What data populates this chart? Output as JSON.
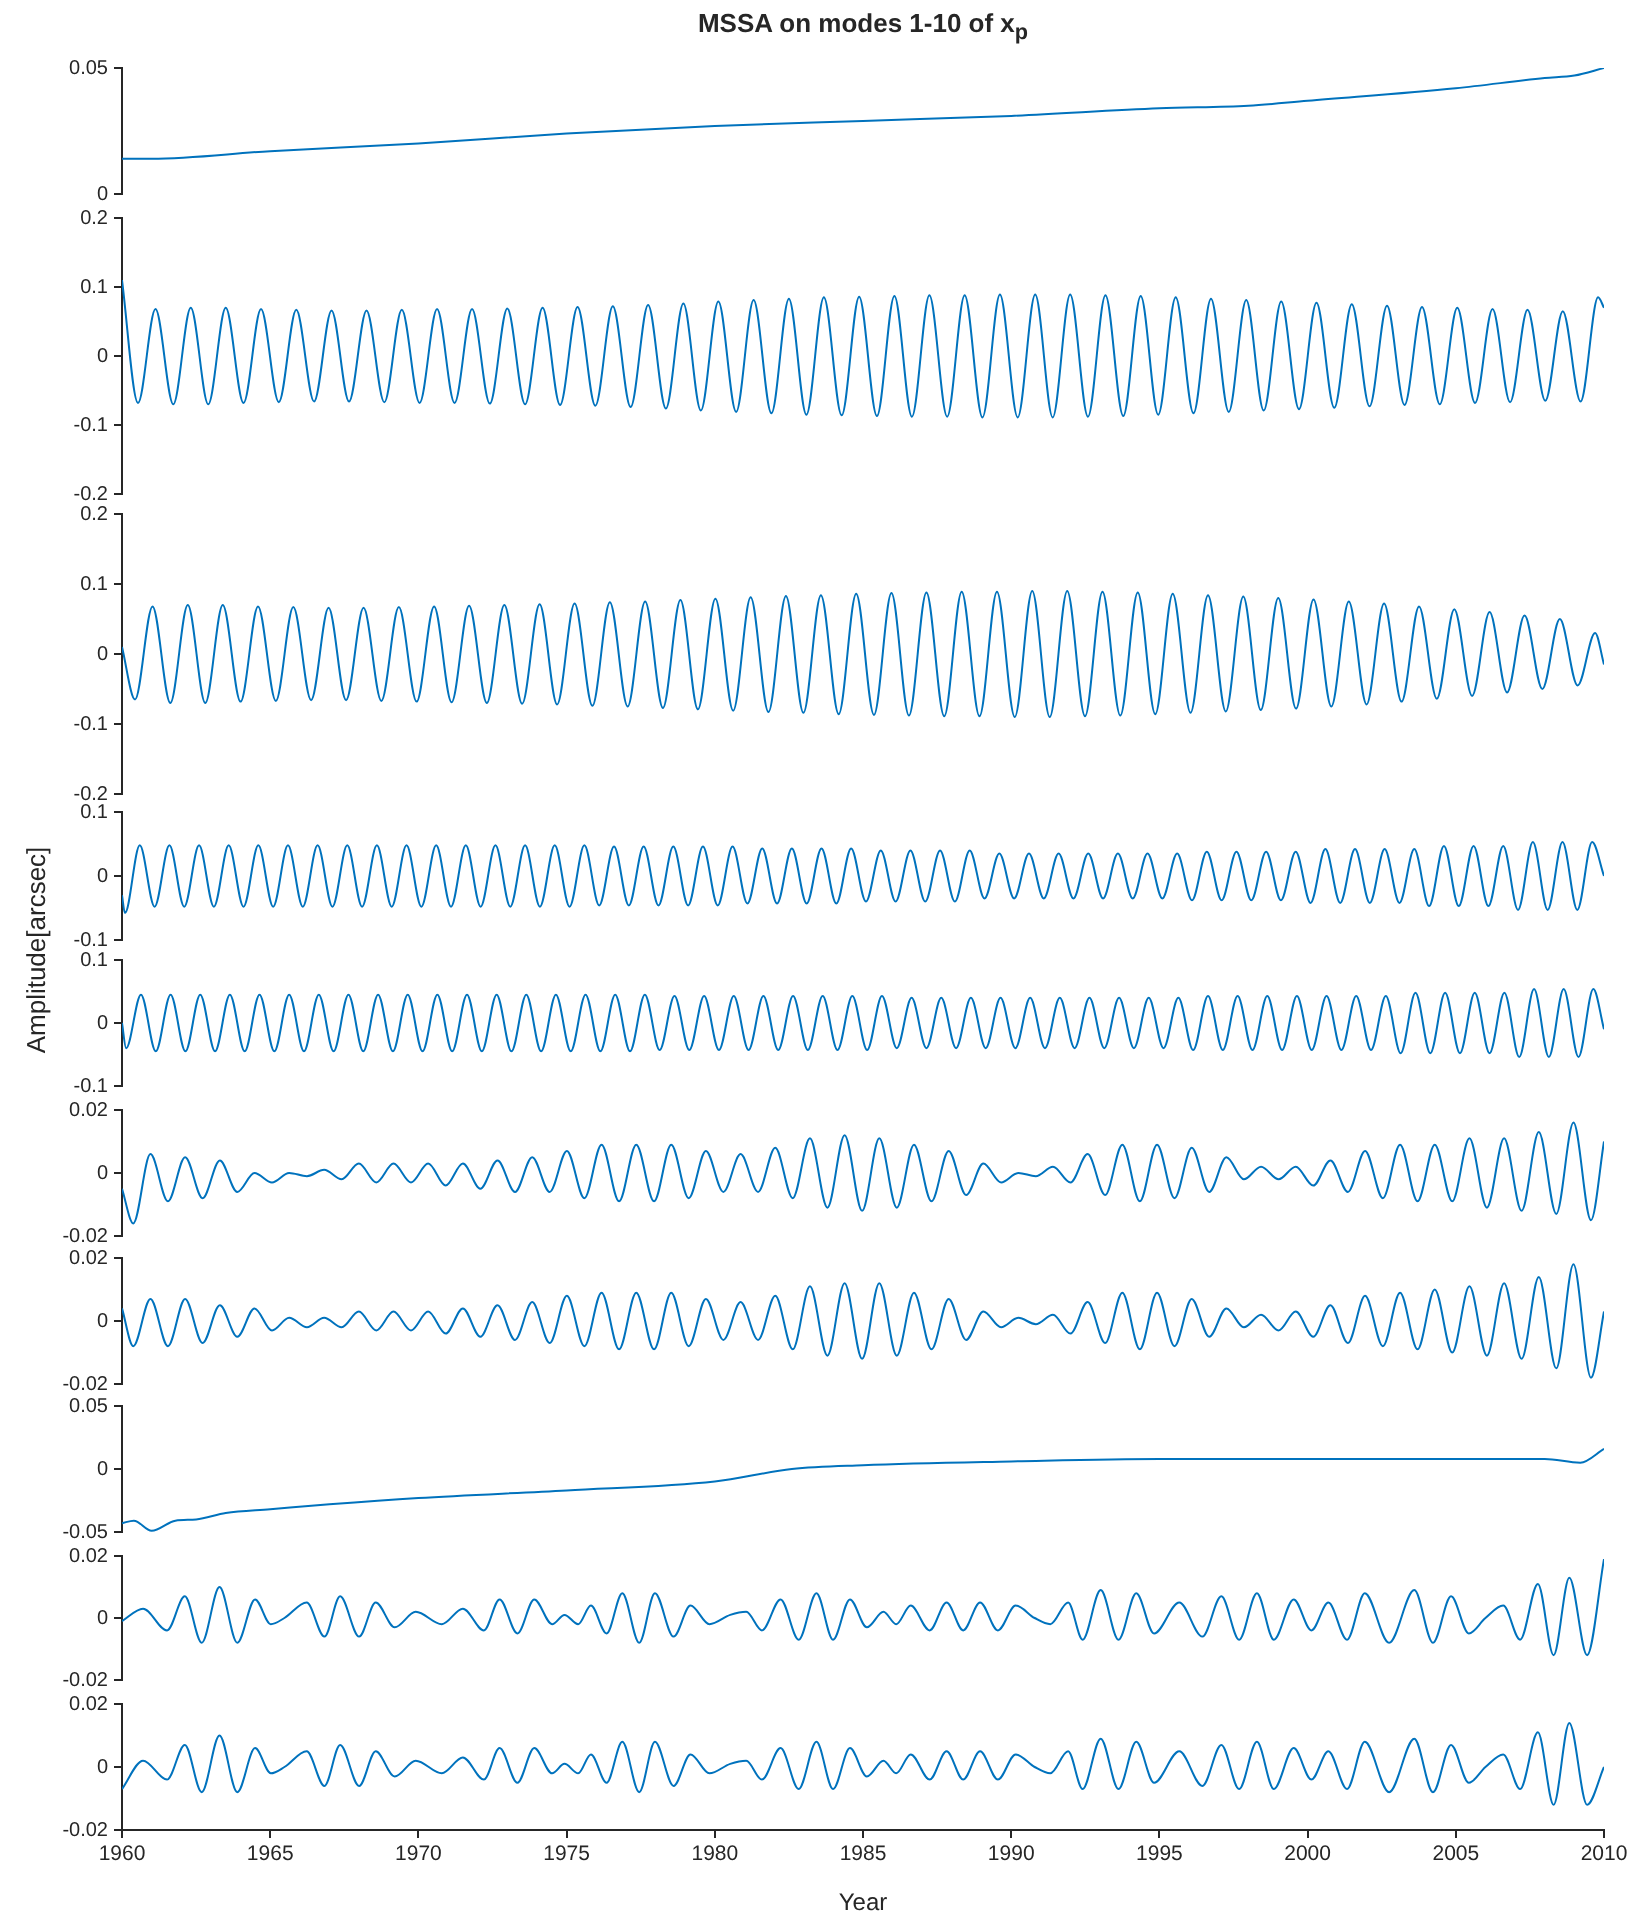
{
  "chart_data": [
    {
      "type": "line",
      "title": "MSSA on modes 1-10 of x$_{p}$",
      "color": "#0072bd",
      "tick_labels": "y",
      "xlim": [
        1960,
        2010
      ],
      "ylim": [
        0,
        0.05
      ],
      "yticks": [
        0,
        0.05
      ],
      "x": [
        1960,
        1961,
        1965,
        1970,
        1975,
        1980,
        1985,
        1990,
        1995,
        1998,
        2000,
        2005,
        2008,
        2009,
        2010
      ],
      "values": [
        0.014,
        0.014,
        0.017,
        0.02,
        0.024,
        0.027,
        0.029,
        0.031,
        0.034,
        0.035,
        0.037,
        0.042,
        0.046,
        0.047,
        0.05
      ]
    },
    {
      "type": "line",
      "color": "#0072bd",
      "tick_labels": "y",
      "xlim": [
        1960,
        2010
      ],
      "ylim": [
        -0.2,
        0.2
      ],
      "yticks": [
        -0.2,
        -0.1,
        0,
        0.1,
        0.2
      ],
      "x": [
        1960,
        1960.54,
        1961.13,
        1961.73,
        1962.32,
        1962.91,
        1963.5,
        1964.1,
        1964.69,
        1965.29,
        1965.88,
        1966.48,
        1967.07,
        1967.66,
        1968.25,
        1968.85,
        1969.44,
        1970.04,
        1970.63,
        1971.22,
        1971.81,
        1972.41,
        1973.0,
        1973.6,
        1974.19,
        1974.78,
        1975.37,
        1975.97,
        1976.56,
        1977.16,
        1977.75,
        1978.35,
        1978.94,
        1979.53,
        1980.12,
        1980.72,
        1981.31,
        1981.91,
        1982.5,
        1983.09,
        1983.68,
        1984.28,
        1984.87,
        1985.47,
        1986.06,
        1986.65,
        1987.24,
        1987.84,
        1988.43,
        1989.03,
        1989.62,
        1990.22,
        1990.81,
        1991.4,
        1991.99,
        1992.59,
        1993.18,
        1993.78,
        1994.37,
        1994.96,
        1995.55,
        1996.15,
        1996.74,
        1997.34,
        1997.93,
        1998.52,
        1999.11,
        1999.71,
        2000.3,
        2000.9,
        2001.49,
        2002.09,
        2002.68,
        2003.27,
        2003.86,
        2004.46,
        2005.05,
        2005.65,
        2006.24,
        2006.83,
        2007.42,
        2008.02,
        2008.61,
        2009.21,
        2009.8,
        2010
      ],
      "values": [
        0.11,
        -0.068,
        0.068,
        -0.07,
        0.07,
        -0.07,
        0.07,
        -0.068,
        0.068,
        -0.067,
        0.067,
        -0.066,
        0.066,
        -0.066,
        0.066,
        -0.067,
        0.067,
        -0.068,
        0.068,
        -0.068,
        0.068,
        -0.069,
        0.069,
        -0.07,
        0.07,
        -0.071,
        0.071,
        -0.072,
        0.072,
        -0.074,
        0.074,
        -0.076,
        0.076,
        -0.079,
        0.079,
        -0.081,
        0.081,
        -0.083,
        0.083,
        -0.085,
        0.085,
        -0.086,
        0.086,
        -0.087,
        0.087,
        -0.088,
        0.088,
        -0.088,
        0.088,
        -0.089,
        0.089,
        -0.089,
        0.089,
        -0.089,
        0.089,
        -0.088,
        0.088,
        -0.087,
        0.087,
        -0.085,
        0.085,
        -0.083,
        0.083,
        -0.081,
        0.081,
        -0.079,
        0.079,
        -0.077,
        0.077,
        -0.075,
        0.075,
        -0.073,
        0.073,
        -0.071,
        0.071,
        -0.07,
        0.07,
        -0.068,
        0.068,
        -0.067,
        0.067,
        -0.065,
        0.065,
        -0.066,
        0.085,
        0.07
      ]
    },
    {
      "type": "line",
      "color": "#0072bd",
      "tick_labels": "y",
      "xlim": [
        1960,
        2010
      ],
      "ylim": [
        -0.2,
        0.2
      ],
      "yticks": [
        -0.2,
        -0.1,
        0,
        0.1,
        0.2
      ],
      "x": [
        1960,
        1960.44,
        1961.03,
        1961.63,
        1962.22,
        1962.81,
        1963.4,
        1964.0,
        1964.59,
        1965.19,
        1965.78,
        1966.38,
        1966.97,
        1967.56,
        1968.15,
        1968.75,
        1969.34,
        1969.94,
        1970.53,
        1971.12,
        1971.71,
        1972.31,
        1972.9,
        1973.5,
        1974.09,
        1974.68,
        1975.27,
        1975.87,
        1976.46,
        1977.06,
        1977.65,
        1978.25,
        1978.84,
        1979.43,
        1980.02,
        1980.62,
        1981.21,
        1981.81,
        1982.4,
        1982.99,
        1983.58,
        1984.18,
        1984.77,
        1985.37,
        1985.96,
        1986.55,
        1987.14,
        1987.74,
        1988.33,
        1988.93,
        1989.52,
        1990.12,
        1990.71,
        1991.3,
        1991.89,
        1992.49,
        1993.08,
        1993.68,
        1994.27,
        1994.86,
        1995.45,
        1996.05,
        1996.64,
        1997.24,
        1997.83,
        1998.42,
        1999.01,
        1999.61,
        2000.2,
        2000.8,
        2001.39,
        2001.99,
        2002.58,
        2003.17,
        2003.76,
        2004.36,
        2004.95,
        2005.55,
        2006.14,
        2006.73,
        2007.32,
        2007.92,
        2008.51,
        2009.11,
        2009.7,
        2010
      ],
      "values": [
        0.01,
        -0.065,
        0.068,
        -0.07,
        0.07,
        -0.07,
        0.07,
        -0.068,
        0.068,
        -0.067,
        0.067,
        -0.066,
        0.066,
        -0.066,
        0.066,
        -0.067,
        0.067,
        -0.068,
        0.068,
        -0.069,
        0.069,
        -0.07,
        0.07,
        -0.071,
        0.071,
        -0.072,
        0.072,
        -0.074,
        0.074,
        -0.075,
        0.075,
        -0.077,
        0.077,
        -0.079,
        0.079,
        -0.081,
        0.081,
        -0.083,
        0.083,
        -0.084,
        0.084,
        -0.086,
        0.086,
        -0.087,
        0.087,
        -0.088,
        0.088,
        -0.089,
        0.089,
        -0.089,
        0.089,
        -0.09,
        0.09,
        -0.09,
        0.09,
        -0.089,
        0.089,
        -0.088,
        0.088,
        -0.086,
        0.086,
        -0.084,
        0.084,
        -0.082,
        0.082,
        -0.08,
        0.08,
        -0.078,
        0.078,
        -0.075,
        0.075,
        -0.072,
        0.072,
        -0.068,
        0.068,
        -0.064,
        0.064,
        -0.06,
        0.06,
        -0.055,
        0.055,
        -0.05,
        0.05,
        -0.045,
        0.03,
        -0.015
      ]
    },
    {
      "type": "line",
      "ylabel": "Amplitude[arcsec]",
      "color": "#0072bd",
      "tick_labels": "y",
      "xlim": [
        1960,
        2010
      ],
      "ylim": [
        -0.1,
        0.1
      ],
      "yticks": [
        -0.1,
        0,
        0.1
      ],
      "x": [
        1960,
        1960.1,
        1960.6,
        1961.1,
        1961.6,
        1962.1,
        1962.6,
        1963.1,
        1963.6,
        1964.1,
        1964.6,
        1965.1,
        1965.6,
        1966.1,
        1966.6,
        1967.1,
        1967.6,
        1968.1,
        1968.6,
        1969.1,
        1969.6,
        1970.1,
        1970.6,
        1971.1,
        1971.6,
        1972.1,
        1972.6,
        1973.1,
        1973.6,
        1974.1,
        1974.6,
        1975.1,
        1975.6,
        1976.1,
        1976.6,
        1977.1,
        1977.6,
        1978.1,
        1978.6,
        1979.1,
        1979.6,
        1980.1,
        1980.6,
        1981.1,
        1981.6,
        1982.1,
        1982.6,
        1983.1,
        1983.6,
        1984.1,
        1984.6,
        1985.1,
        1985.6,
        1986.1,
        1986.6,
        1987.1,
        1987.6,
        1988.1,
        1988.6,
        1989.1,
        1989.6,
        1990.1,
        1990.6,
        1991.1,
        1991.6,
        1992.1,
        1992.6,
        1993.1,
        1993.6,
        1994.1,
        1994.6,
        1995.1,
        1995.6,
        1996.1,
        1996.6,
        1997.1,
        1997.6,
        1998.1,
        1998.6,
        1999.1,
        1999.6,
        2000.1,
        2000.6,
        2001.1,
        2001.6,
        2002.1,
        2002.6,
        2003.1,
        2003.6,
        2004.1,
        2004.6,
        2005.1,
        2005.6,
        2006.1,
        2006.6,
        2007.1,
        2007.6,
        2008.1,
        2008.6,
        2009.1,
        2009.6,
        2010
      ],
      "values": [
        -0.03,
        -0.058,
        0.048,
        -0.048,
        0.048,
        -0.048,
        0.048,
        -0.048,
        0.048,
        -0.048,
        0.048,
        -0.048,
        0.048,
        -0.048,
        0.048,
        -0.048,
        0.048,
        -0.048,
        0.048,
        -0.048,
        0.048,
        -0.048,
        0.048,
        -0.048,
        0.048,
        -0.048,
        0.048,
        -0.048,
        0.048,
        -0.048,
        0.048,
        -0.048,
        0.048,
        -0.046,
        0.046,
        -0.046,
        0.046,
        -0.046,
        0.046,
        -0.046,
        0.046,
        -0.046,
        0.046,
        -0.043,
        0.043,
        -0.043,
        0.043,
        -0.043,
        0.043,
        -0.043,
        0.043,
        -0.04,
        0.04,
        -0.04,
        0.04,
        -0.04,
        0.04,
        -0.04,
        0.04,
        -0.035,
        0.035,
        -0.035,
        0.035,
        -0.035,
        0.035,
        -0.035,
        0.035,
        -0.035,
        0.035,
        -0.035,
        0.035,
        -0.035,
        0.035,
        -0.038,
        0.038,
        -0.038,
        0.038,
        -0.038,
        0.038,
        -0.038,
        0.038,
        -0.042,
        0.042,
        -0.042,
        0.042,
        -0.042,
        0.042,
        -0.042,
        0.042,
        -0.047,
        0.047,
        -0.047,
        0.047,
        -0.047,
        0.047,
        -0.053,
        0.053,
        -0.053,
        0.053,
        -0.053,
        0.053,
        0
      ]
    },
    {
      "type": "line",
      "color": "#0072bd",
      "tick_labels": "y",
      "xlim": [
        1960,
        2010
      ],
      "ylim": [
        -0.1,
        0.1
      ],
      "yticks": [
        -0.1,
        0,
        0.1
      ],
      "x": [
        1960,
        1960.14,
        1960.64,
        1961.14,
        1961.64,
        1962.14,
        1962.64,
        1963.14,
        1963.64,
        1964.14,
        1964.64,
        1965.14,
        1965.64,
        1966.14,
        1966.64,
        1967.14,
        1967.64,
        1968.14,
        1968.64,
        1969.14,
        1969.64,
        1970.14,
        1970.64,
        1971.14,
        1971.64,
        1972.14,
        1972.64,
        1973.14,
        1973.64,
        1974.14,
        1974.64,
        1975.14,
        1975.64,
        1976.14,
        1976.64,
        1977.14,
        1977.64,
        1978.14,
        1978.64,
        1979.14,
        1979.64,
        1980.14,
        1980.64,
        1981.14,
        1981.64,
        1982.14,
        1982.64,
        1983.14,
        1983.64,
        1984.14,
        1984.64,
        1985.14,
        1985.64,
        1986.14,
        1986.64,
        1987.14,
        1987.64,
        1988.14,
        1988.64,
        1989.14,
        1989.64,
        1990.14,
        1990.64,
        1991.14,
        1991.64,
        1992.14,
        1992.64,
        1993.14,
        1993.64,
        1994.14,
        1994.64,
        1995.14,
        1995.64,
        1996.14,
        1996.64,
        1997.14,
        1997.64,
        1998.14,
        1998.64,
        1999.14,
        1999.64,
        2000.14,
        2000.64,
        2001.14,
        2001.64,
        2002.14,
        2002.64,
        2003.14,
        2003.64,
        2004.14,
        2004.64,
        2005.14,
        2005.64,
        2006.14,
        2006.64,
        2007.14,
        2007.64,
        2008.14,
        2008.64,
        2009.14,
        2009.64,
        2010
      ],
      "values": [
        0,
        -0.04,
        0.045,
        -0.045,
        0.045,
        -0.045,
        0.045,
        -0.045,
        0.045,
        -0.045,
        0.045,
        -0.045,
        0.045,
        -0.045,
        0.045,
        -0.045,
        0.045,
        -0.045,
        0.045,
        -0.045,
        0.045,
        -0.045,
        0.045,
        -0.045,
        0.045,
        -0.045,
        0.045,
        -0.045,
        0.045,
        -0.045,
        0.045,
        -0.045,
        0.045,
        -0.045,
        0.045,
        -0.045,
        0.045,
        -0.043,
        0.043,
        -0.043,
        0.043,
        -0.043,
        0.043,
        -0.043,
        0.043,
        -0.043,
        0.043,
        -0.043,
        0.043,
        -0.043,
        0.043,
        -0.043,
        0.043,
        -0.04,
        0.04,
        -0.04,
        0.04,
        -0.04,
        0.04,
        -0.04,
        0.04,
        -0.04,
        0.04,
        -0.04,
        0.04,
        -0.04,
        0.04,
        -0.04,
        0.04,
        -0.04,
        0.04,
        -0.04,
        0.04,
        -0.043,
        0.043,
        -0.043,
        0.043,
        -0.043,
        0.043,
        -0.043,
        0.043,
        -0.043,
        0.043,
        -0.043,
        0.043,
        -0.043,
        0.043,
        -0.048,
        0.048,
        -0.048,
        0.048,
        -0.048,
        0.048,
        -0.048,
        0.048,
        -0.054,
        0.054,
        -0.054,
        0.054,
        -0.054,
        0.054,
        -0.01
      ]
    },
    {
      "type": "line",
      "color": "#0072bd",
      "tick_labels": "y",
      "xlim": [
        1960,
        2010
      ],
      "ylim": [
        -0.02,
        0.02
      ],
      "yticks": [
        -0.02,
        0,
        0.02
      ],
      "x": [
        1960,
        1960.38,
        1960.96,
        1961.55,
        1962.13,
        1962.72,
        1963.3,
        1963.89,
        1964.47,
        1965.06,
        1965.64,
        1966.24,
        1966.82,
        1967.41,
        1967.99,
        1968.58,
        1969.16,
        1969.75,
        1970.33,
        1970.92,
        1971.5,
        1972.09,
        1972.67,
        1973.26,
        1973.84,
        1974.43,
        1975.01,
        1975.6,
        1976.18,
        1976.77,
        1977.35,
        1977.95,
        1978.53,
        1979.12,
        1979.7,
        1980.29,
        1980.87,
        1981.46,
        1982.04,
        1982.63,
        1983.21,
        1983.8,
        1984.38,
        1984.97,
        1985.55,
        1986.14,
        1986.72,
        1987.31,
        1987.89,
        1988.48,
        1989.06,
        1989.66,
        1990.24,
        1990.83,
        1991.41,
        1992.0,
        1992.58,
        1993.17,
        1993.75,
        1994.34,
        1994.92,
        1995.51,
        1996.09,
        1996.68,
        1997.26,
        1997.85,
        1998.43,
        1999.02,
        1999.6,
        2000.19,
        2000.77,
        2001.36,
        2001.94,
        2002.54,
        2003.12,
        2003.71,
        2004.29,
        2004.88,
        2005.46,
        2006.05,
        2006.63,
        2007.22,
        2007.8,
        2008.39,
        2008.97,
        2009.56,
        2010
      ],
      "values": [
        -0.005,
        -0.016,
        0.006,
        -0.009,
        0.005,
        -0.008,
        0.004,
        -0.006,
        0,
        -0.003,
        0,
        -0.001,
        0.001,
        -0.002,
        0.003,
        -0.003,
        0.003,
        -0.003,
        0.003,
        -0.004,
        0.003,
        -0.005,
        0.004,
        -0.006,
        0.005,
        -0.006,
        0.007,
        -0.008,
        0.009,
        -0.009,
        0.009,
        -0.009,
        0.009,
        -0.008,
        0.007,
        -0.006,
        0.006,
        -0.006,
        0.008,
        -0.008,
        0.011,
        -0.011,
        0.012,
        -0.012,
        0.011,
        -0.011,
        0.009,
        -0.009,
        0.007,
        -0.007,
        0.003,
        -0.003,
        0,
        -0.001,
        0.002,
        -0.003,
        0.006,
        -0.007,
        0.009,
        -0.009,
        0.009,
        -0.008,
        0.008,
        -0.006,
        0.005,
        -0.002,
        0.002,
        -0.002,
        0.002,
        -0.004,
        0.004,
        -0.006,
        0.007,
        -0.008,
        0.009,
        -0.009,
        0.009,
        -0.009,
        0.011,
        -0.011,
        0.011,
        -0.012,
        0.013,
        -0.013,
        0.016,
        -0.015,
        0.01
      ]
    },
    {
      "type": "line",
      "color": "#0072bd",
      "tick_labels": "y",
      "xlim": [
        1960,
        2010
      ],
      "ylim": [
        -0.02,
        0.02
      ],
      "yticks": [
        -0.02,
        0,
        0.02
      ],
      "x": [
        1960,
        1960.38,
        1960.96,
        1961.55,
        1962.13,
        1962.72,
        1963.3,
        1963.89,
        1964.47,
        1965.06,
        1965.64,
        1966.24,
        1966.82,
        1967.41,
        1967.99,
        1968.58,
        1969.16,
        1969.75,
        1970.33,
        1970.92,
        1971.5,
        1972.09,
        1972.67,
        1973.26,
        1973.84,
        1974.43,
        1975.01,
        1975.6,
        1976.18,
        1976.77,
        1977.35,
        1977.95,
        1978.53,
        1979.12,
        1979.7,
        1980.29,
        1980.87,
        1981.46,
        1982.04,
        1982.63,
        1983.21,
        1983.8,
        1984.38,
        1984.97,
        1985.55,
        1986.14,
        1986.72,
        1987.31,
        1987.89,
        1988.48,
        1989.06,
        1989.66,
        1990.24,
        1990.83,
        1991.41,
        1992.0,
        1992.58,
        1993.17,
        1993.75,
        1994.34,
        1994.92,
        1995.51,
        1996.09,
        1996.68,
        1997.26,
        1997.85,
        1998.43,
        1999.02,
        1999.6,
        2000.19,
        2000.77,
        2001.36,
        2001.94,
        2002.54,
        2003.12,
        2003.71,
        2004.29,
        2004.88,
        2005.46,
        2006.05,
        2006.63,
        2007.22,
        2007.8,
        2008.39,
        2008.97,
        2009.56,
        2010
      ],
      "values": [
        0.004,
        -0.008,
        0.007,
        -0.008,
        0.007,
        -0.007,
        0.005,
        -0.005,
        0.004,
        -0.003,
        0.001,
        -0.002,
        0.001,
        -0.002,
        0.003,
        -0.003,
        0.003,
        -0.003,
        0.003,
        -0.004,
        0.004,
        -0.005,
        0.005,
        -0.006,
        0.006,
        -0.007,
        0.008,
        -0.008,
        0.009,
        -0.009,
        0.009,
        -0.009,
        0.009,
        -0.008,
        0.007,
        -0.006,
        0.006,
        -0.006,
        0.008,
        -0.009,
        0.011,
        -0.011,
        0.012,
        -0.012,
        0.012,
        -0.011,
        0.009,
        -0.009,
        0.007,
        -0.006,
        0.003,
        -0.002,
        0.001,
        -0.001,
        0.002,
        -0.004,
        0.006,
        -0.007,
        0.009,
        -0.009,
        0.009,
        -0.008,
        0.007,
        -0.005,
        0.004,
        -0.002,
        0.002,
        -0.003,
        0.003,
        -0.005,
        0.005,
        -0.007,
        0.008,
        -0.008,
        0.009,
        -0.009,
        0.01,
        -0.01,
        0.011,
        -0.011,
        0.012,
        -0.012,
        0.014,
        -0.015,
        0.018,
        -0.018,
        0.003
      ]
    },
    {
      "type": "line",
      "color": "#0072bd",
      "tick_labels": "y",
      "xlim": [
        1960,
        2010
      ],
      "ylim": [
        -0.05,
        0.05
      ],
      "yticks": [
        -0.05,
        0,
        0.05
      ],
      "x": [
        1960,
        1960.4,
        1961,
        1961.8,
        1962.5,
        1963.5,
        1965,
        1967,
        1970,
        1975,
        1980,
        1982.6,
        1985,
        1990,
        1995,
        2000,
        2005,
        2008,
        2009.2,
        2010
      ],
      "values": [
        -0.043,
        -0.041,
        -0.049,
        -0.041,
        -0.04,
        -0.035,
        -0.032,
        -0.028,
        -0.023,
        -0.017,
        -0.01,
        0,
        0.003,
        0.006,
        0.008,
        0.008,
        0.008,
        0.008,
        0.005,
        0.016
      ]
    },
    {
      "type": "line",
      "color": "#0072bd",
      "tick_labels": "y",
      "xlim": [
        1960,
        2010
      ],
      "ylim": [
        -0.02,
        0.02
      ],
      "yticks": [
        -0.02,
        0,
        0.02
      ],
      "x": [
        1960,
        1960.71,
        1961.52,
        1962.12,
        1962.69,
        1963.29,
        1963.89,
        1964.49,
        1965.02,
        1965.48,
        1966.23,
        1966.83,
        1967.36,
        1968.0,
        1968.56,
        1969.2,
        1969.91,
        1970.79,
        1971.5,
        1972.21,
        1972.74,
        1973.34,
        1973.91,
        1974.51,
        1974.93,
        1975.39,
        1975.82,
        1976.35,
        1976.88,
        1977.45,
        1977.98,
        1978.61,
        1979.18,
        1979.82,
        1980.52,
        1981.06,
        1981.59,
        1982.22,
        1982.83,
        1983.43,
        1983.99,
        1984.56,
        1985.13,
        1985.69,
        1986.12,
        1986.61,
        1987.25,
        1987.82,
        1988.38,
        1988.95,
        1989.55,
        1990.15,
        1990.79,
        1991.32,
        1991.92,
        1992.41,
        1993.02,
        1993.62,
        1994.22,
        1994.82,
        1995.67,
        1996.45,
        1997.09,
        1997.69,
        1998.29,
        1998.86,
        1999.53,
        2000.13,
        2000.7,
        2001.33,
        2001.93,
        2002.75,
        2003.6,
        2004.23,
        2004.84,
        2005.44,
        2006.0,
        2006.6,
        2007.17,
        2007.77,
        2008.3,
        2008.83,
        2009.43,
        2010
      ],
      "values": [
        -0.001,
        0.003,
        -0.004,
        0.007,
        -0.008,
        0.01,
        -0.008,
        0.006,
        -0.002,
        0,
        0.005,
        -0.006,
        0.007,
        -0.006,
        0.005,
        -0.003,
        0.002,
        -0.002,
        0.003,
        -0.004,
        0.006,
        -0.005,
        0.006,
        -0.002,
        0.001,
        -0.002,
        0.004,
        -0.005,
        0.008,
        -0.008,
        0.008,
        -0.006,
        0.004,
        -0.002,
        0.001,
        0.002,
        -0.004,
        0.006,
        -0.007,
        0.008,
        -0.007,
        0.006,
        -0.003,
        0.002,
        -0.002,
        0.004,
        -0.004,
        0.005,
        -0.004,
        0.005,
        -0.004,
        0.004,
        0,
        -0.002,
        0.005,
        -0.007,
        0.009,
        -0.007,
        0.008,
        -0.005,
        0.005,
        -0.006,
        0.007,
        -0.007,
        0.008,
        -0.007,
        0.006,
        -0.004,
        0.005,
        -0.007,
        0.008,
        -0.008,
        0.009,
        -0.008,
        0.007,
        -0.005,
        0,
        0.004,
        -0.007,
        0.011,
        -0.012,
        0.013,
        -0.012,
        0.019
      ]
    },
    {
      "type": "line",
      "xlabel": "Year",
      "color": "#0072bd",
      "xlim": [
        1960,
        2010
      ],
      "xticks": [
        1960,
        1965,
        1970,
        1975,
        1980,
        1985,
        1990,
        1995,
        2000,
        2005,
        2010
      ],
      "ylim": [
        -0.02,
        0.02
      ],
      "yticks": [
        -0.02,
        0,
        0.02
      ],
      "x": [
        1960,
        1960.71,
        1961.52,
        1962.12,
        1962.69,
        1963.29,
        1963.89,
        1964.49,
        1965.02,
        1965.48,
        1966.23,
        1966.83,
        1967.36,
        1968.0,
        1968.56,
        1969.2,
        1969.91,
        1970.79,
        1971.5,
        1972.21,
        1972.74,
        1973.34,
        1973.91,
        1974.51,
        1974.93,
        1975.39,
        1975.82,
        1976.35,
        1976.88,
        1977.45,
        1977.98,
        1978.61,
        1979.18,
        1979.82,
        1980.52,
        1981.06,
        1981.59,
        1982.22,
        1982.83,
        1983.43,
        1983.99,
        1984.56,
        1985.13,
        1985.69,
        1986.12,
        1986.61,
        1987.25,
        1987.82,
        1988.38,
        1988.95,
        1989.55,
        1990.15,
        1990.79,
        1991.32,
        1991.92,
        1992.41,
        1993.02,
        1993.62,
        1994.22,
        1994.82,
        1995.67,
        1996.45,
        1997.09,
        1997.69,
        1998.29,
        1998.86,
        1999.53,
        2000.13,
        2000.7,
        2001.33,
        2001.93,
        2002.75,
        2003.6,
        2004.23,
        2004.84,
        2005.44,
        2006.0,
        2006.6,
        2007.17,
        2007.77,
        2008.3,
        2008.83,
        2009.43,
        2010
      ],
      "values": [
        -0.007,
        0.002,
        -0.004,
        0.007,
        -0.008,
        0.01,
        -0.008,
        0.006,
        -0.002,
        0,
        0.005,
        -0.006,
        0.007,
        -0.006,
        0.005,
        -0.003,
        0.002,
        -0.002,
        0.003,
        -0.004,
        0.006,
        -0.005,
        0.006,
        -0.002,
        0.001,
        -0.002,
        0.004,
        -0.005,
        0.008,
        -0.008,
        0.008,
        -0.006,
        0.004,
        -0.002,
        0.001,
        0.002,
        -0.004,
        0.006,
        -0.007,
        0.008,
        -0.007,
        0.006,
        -0.003,
        0.002,
        -0.002,
        0.004,
        -0.004,
        0.005,
        -0.004,
        0.005,
        -0.004,
        0.004,
        0,
        -0.002,
        0.005,
        -0.007,
        0.009,
        -0.007,
        0.008,
        -0.005,
        0.005,
        -0.006,
        0.007,
        -0.007,
        0.008,
        -0.007,
        0.006,
        -0.004,
        0.005,
        -0.007,
        0.008,
        -0.008,
        0.009,
        -0.008,
        0.007,
        -0.005,
        0,
        0.004,
        -0.007,
        0.011,
        -0.012,
        0.014,
        -0.012,
        0
      ]
    }
  ]
}
